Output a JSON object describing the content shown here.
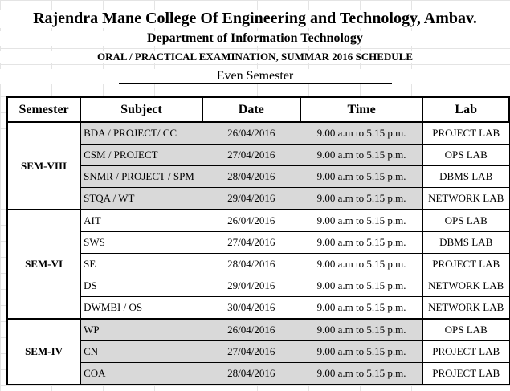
{
  "header": {
    "college": "Rajendra Mane College Of Engineering and Technology, Ambav.",
    "department": "Department of Information Technology",
    "exam": "ORAL  / PRACTICAL EXAMINATION, SUMMAR 2016 SCHEDULE",
    "semester_type": "Even Semester"
  },
  "columns": [
    "Semester",
    "Subject",
    "Date",
    "Time",
    "Lab"
  ],
  "groups": [
    {
      "semester": "SEM-VIII",
      "shaded": true,
      "rows": [
        {
          "subject": "BDA / PROJECT/ CC",
          "date": "26/04/2016",
          "time": "9.00 a.m to 5.15 p.m.",
          "lab": "PROJECT LAB"
        },
        {
          "subject": "CSM / PROJECT",
          "date": "27/04/2016",
          "time": "9.00 a.m to 5.15 p.m.",
          "lab": "OPS LAB"
        },
        {
          "subject": "SNMR / PROJECT / SPM",
          "date": "28/04/2016",
          "time": "9.00 a.m to 5.15 p.m.",
          "lab": "DBMS LAB"
        },
        {
          "subject": "STQA / WT",
          "date": "29/04/2016",
          "time": "9.00 a.m to 5.15 p.m.",
          "lab": "NETWORK LAB"
        }
      ]
    },
    {
      "semester": "SEM-VI",
      "shaded": false,
      "rows": [
        {
          "subject": "AIT",
          "date": "26/04/2016",
          "time": "9.00 a.m to 5.15 p.m.",
          "lab": "OPS LAB"
        },
        {
          "subject": "SWS",
          "date": "27/04/2016",
          "time": "9.00 a.m to 5.15 p.m.",
          "lab": "DBMS LAB"
        },
        {
          "subject": "SE",
          "date": "28/04/2016",
          "time": "9.00 a.m to 5.15 p.m.",
          "lab": "PROJECT LAB"
        },
        {
          "subject": "DS",
          "date": "29/04/2016",
          "time": "9.00 a.m to 5.15 p.m.",
          "lab": "NETWORK LAB"
        },
        {
          "subject": "DWMBI / OS",
          "date": "30/04/2016",
          "time": "9.00 a.m to 5.15 p.m.",
          "lab": "NETWORK LAB"
        }
      ]
    },
    {
      "semester": "SEM-IV",
      "shaded": true,
      "rows": [
        {
          "subject": "WP",
          "date": "26/04/2016",
          "time": "9.00 a.m to 5.15 p.m.",
          "lab": "OPS LAB"
        },
        {
          "subject": "CN",
          "date": "27/04/2016",
          "time": "9.00 a.m to 5.15 p.m.",
          "lab": "PROJECT LAB"
        },
        {
          "subject": "COA",
          "date": "28/04/2016",
          "time": "9.00 a.m to 5.15 p.m.",
          "lab": "PROJECT LAB"
        }
      ]
    }
  ],
  "colors": {
    "shade": "#d9d9d9",
    "border": "#000000"
  }
}
